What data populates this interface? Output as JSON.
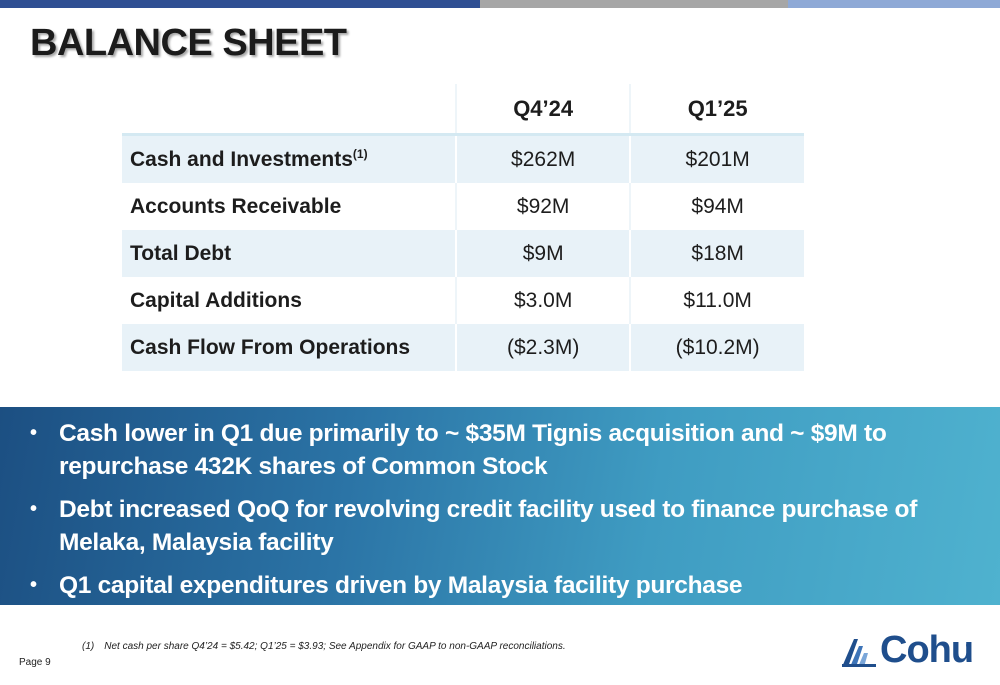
{
  "colors": {
    "accent_dark_blue": "#2f4f93",
    "accent_gray": "#a6a6a6",
    "accent_light_blue": "#8ea9d6",
    "row_shade": "#e8f2f8",
    "band_start": "#1c4f82",
    "band_end": "#4fb2cf",
    "logo_blue": "#1f4e8c"
  },
  "title": "BALANCE SHEET",
  "table": {
    "columns": [
      "",
      "Q4’24",
      "Q1’25"
    ],
    "rows": [
      {
        "label": "Cash and Investments",
        "footnote_ref": "(1)",
        "q4_24": "$262M",
        "q1_25": "$201M"
      },
      {
        "label": "Accounts Receivable",
        "q4_24": "$92M",
        "q1_25": "$94M"
      },
      {
        "label": "Total Debt",
        "q4_24": "$9M",
        "q1_25": "$18M"
      },
      {
        "label": "Capital Additions",
        "q4_24": "$3.0M",
        "q1_25": "$11.0M"
      },
      {
        "label": "Cash Flow From Operations",
        "q4_24": "($2.3M)",
        "q1_25": "($10.2M)"
      }
    ]
  },
  "bullets": [
    "Cash lower in Q1 due primarily to ~ $35M Tignis acquisition and ~ $9M to repurchase 432K shares of Common Stock",
    "Debt increased QoQ for revolving credit facility used to finance purchase of Melaka, Malaysia facility",
    "Q1 capital expenditures driven by Malaysia facility purchase"
  ],
  "footnote": {
    "number": "(1)",
    "text": "Net cash per share Q4’24 = $5.42; Q1’25 = $3.93; See Appendix for GAAP to non-GAAP reconciliations."
  },
  "page_label": "Page 9",
  "logo": {
    "icon": "cohu-logo-icon",
    "text": "Cohu",
    "registered": "®"
  }
}
